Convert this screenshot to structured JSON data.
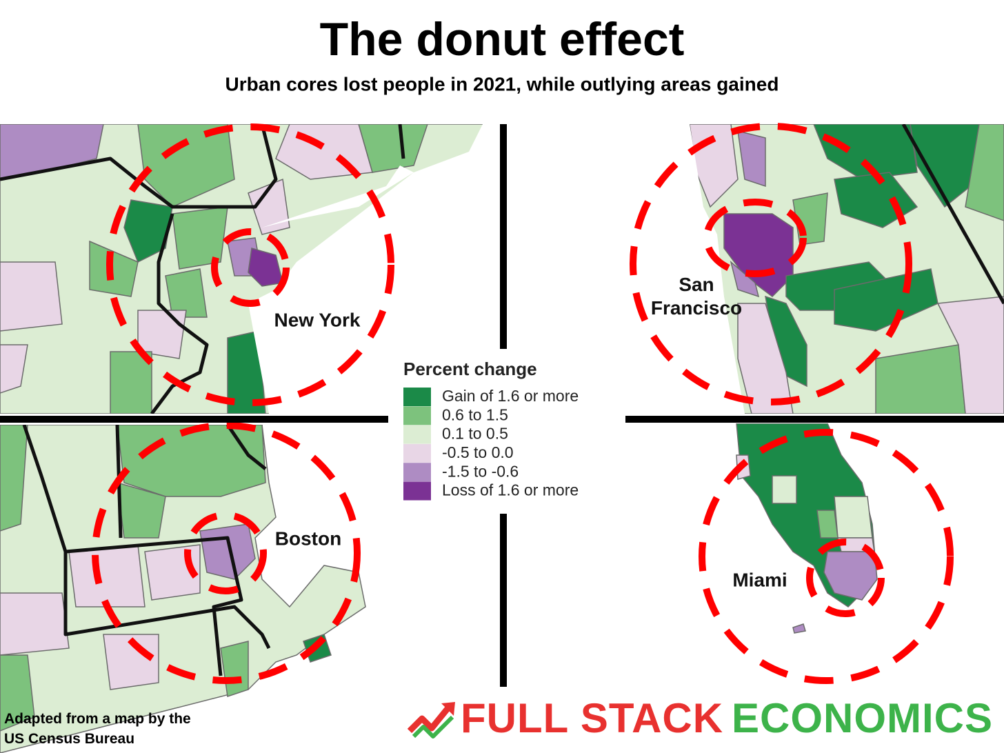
{
  "header": {
    "title": "The donut effect",
    "subtitle": "Urban cores lost people in 2021, while outlying areas gained"
  },
  "cities": [
    "New York",
    "San Francisco",
    "Boston",
    "Miami"
  ],
  "legend": {
    "title": "Percent change",
    "items": [
      {
        "label": "Gain of 1.6 or more",
        "color": "#1b8a48"
      },
      {
        "label": "0.6 to 1.5",
        "color": "#7dc27d"
      },
      {
        "label": "0.1 to 0.5",
        "color": "#dcedd3"
      },
      {
        "label": "-0.5 to 0.0",
        "color": "#e8d6e6"
      },
      {
        "label": "-1.5 to -0.6",
        "color": "#ae8cc3"
      },
      {
        "label": "Loss of 1.6 or more",
        "color": "#7b3294"
      }
    ]
  },
  "footer": {
    "credit": "Adapted from a map by the US Census Bureau",
    "logo": [
      "FULL STACK",
      "ECONOMICS"
    ]
  }
}
